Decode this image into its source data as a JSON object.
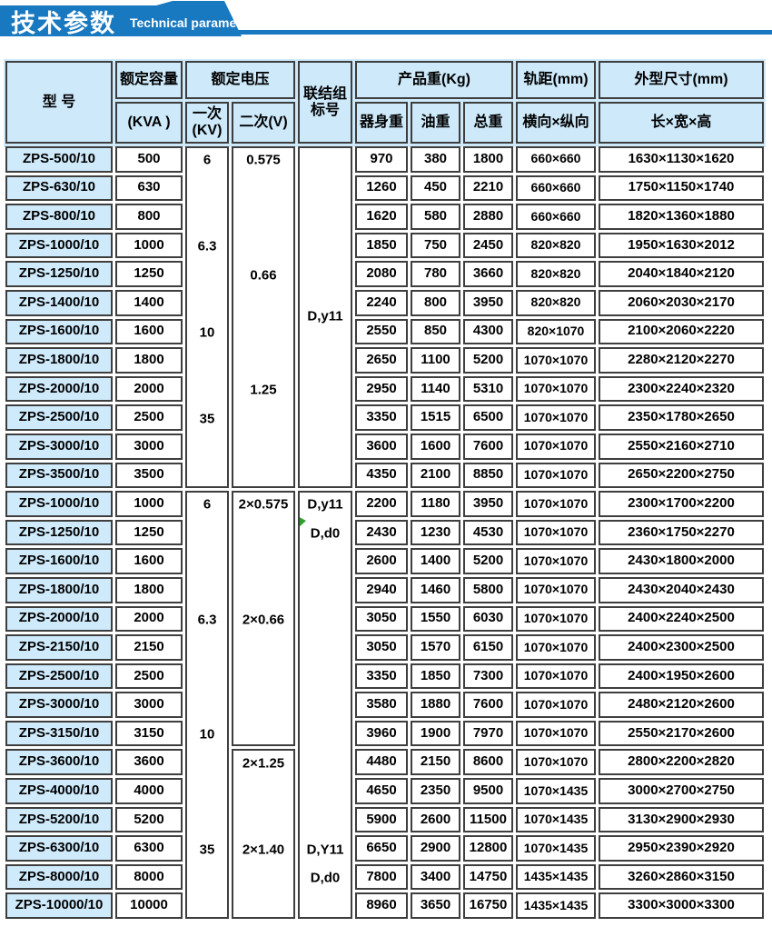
{
  "banner": {
    "title_zh": "技术参数",
    "title_en": "Technical parameter",
    "color": "#1879c0"
  },
  "table": {
    "colors": {
      "border": "#3e3e3e",
      "header_bg": "#cde9fa",
      "model_bg": "#cfeafb",
      "marker_green": "#2da02d"
    },
    "headers": {
      "model": "型 号",
      "capacity_line1": "额定容量",
      "capacity_line2": "(KVA )",
      "voltage": "额定电压",
      "primary_line1": "一次",
      "primary_line2": "(KV)",
      "secondary": "二次(V)",
      "connection_line1": "联结组",
      "connection_line2": "标号",
      "weight": "产品重(Kg)",
      "body_weight": "器身重",
      "oil_weight": "油重",
      "total_weight": "总重",
      "gauge": "轨距(mm)",
      "gauge_sub": "横向×纵向",
      "dimensions": "外型尺寸(mm)",
      "dimensions_sub": "长×宽×高"
    },
    "sections": [
      {
        "rows": [
          {
            "model": "ZPS-500/10",
            "kva": "500",
            "body": "970",
            "oil": "380",
            "total": "1800",
            "gauge": "660×660",
            "dims": "1630×1130×1620"
          },
          {
            "model": "ZPS-630/10",
            "kva": "630",
            "body": "1260",
            "oil": "450",
            "total": "2210",
            "gauge": "660×660",
            "dims": "1750×1150×1740"
          },
          {
            "model": "ZPS-800/10",
            "kva": "800",
            "body": "1620",
            "oil": "580",
            "total": "2880",
            "gauge": "660×660",
            "dims": "1820×1360×1880"
          },
          {
            "model": "ZPS-1000/10",
            "kva": "1000",
            "body": "1850",
            "oil": "750",
            "total": "2450",
            "gauge": "820×820",
            "dims": "1950×1630×2012"
          },
          {
            "model": "ZPS-1250/10",
            "kva": "1250",
            "body": "2080",
            "oil": "780",
            "total": "3660",
            "gauge": "820×820",
            "dims": "2040×1840×2120"
          },
          {
            "model": "ZPS-1400/10",
            "kva": "1400",
            "body": "2240",
            "oil": "800",
            "total": "3950",
            "gauge": "820×820",
            "dims": "2060×2030×2170"
          },
          {
            "model": "ZPS-1600/10",
            "kva": "1600",
            "body": "2550",
            "oil": "850",
            "total": "4300",
            "gauge": "820×1070",
            "dims": "2100×2060×2220"
          },
          {
            "model": "ZPS-1800/10",
            "kva": "1800",
            "body": "2650",
            "oil": "1100",
            "total": "5200",
            "gauge": "1070×1070",
            "dims": "2280×2120×2270"
          },
          {
            "model": "ZPS-2000/10",
            "kva": "2000",
            "body": "2950",
            "oil": "1140",
            "total": "5310",
            "gauge": "1070×1070",
            "dims": "2300×2240×2320"
          },
          {
            "model": "ZPS-2500/10",
            "kva": "2500",
            "body": "3350",
            "oil": "1515",
            "total": "6500",
            "gauge": "1070×1070",
            "dims": "2350×1780×2650"
          },
          {
            "model": "ZPS-3000/10",
            "kva": "3000",
            "body": "3600",
            "oil": "1600",
            "total": "7600",
            "gauge": "1070×1070",
            "dims": "2550×2160×2710"
          },
          {
            "model": "ZPS-3500/10",
            "kva": "3500",
            "body": "4350",
            "oil": "2100",
            "total": "8850",
            "gauge": "1070×1070",
            "dims": "2650×2200×2750"
          }
        ],
        "primary": {
          "cells": [
            {
              "from": 0,
              "to": 11,
              "values": [
                {
                  "row": 0,
                  "text": "6"
                },
                {
                  "row": 3,
                  "text": "6.3"
                },
                {
                  "row": 6,
                  "text": "10"
                },
                {
                  "row": 9,
                  "text": "35"
                }
              ]
            }
          ]
        },
        "secondary": {
          "cells": [
            {
              "from": 0,
              "to": 11,
              "values": [
                {
                  "row": 0,
                  "text": "0.575"
                },
                {
                  "row": 4,
                  "text": "0.66"
                },
                {
                  "row": 8,
                  "text": "1.25"
                }
              ]
            }
          ]
        },
        "connection": {
          "cells": [
            {
              "from": 0,
              "to": 11,
              "values": [
                {
                  "row": "center",
                  "text": "D,y11"
                }
              ]
            }
          ]
        }
      },
      {
        "rows": [
          {
            "model": "ZPS-1000/10",
            "kva": "1000",
            "body": "2200",
            "oil": "1180",
            "total": "3950",
            "gauge": "1070×1070",
            "dims": "2300×1700×2200"
          },
          {
            "model": "ZPS-1250/10",
            "kva": "1250",
            "body": "2430",
            "oil": "1230",
            "total": "4530",
            "gauge": "1070×1070",
            "dims": "2360×1750×2270"
          },
          {
            "model": "ZPS-1600/10",
            "kva": "1600",
            "body": "2600",
            "oil": "1400",
            "total": "5200",
            "gauge": "1070×1070",
            "dims": "2430×1800×2000"
          },
          {
            "model": "ZPS-1800/10",
            "kva": "1800",
            "body": "2940",
            "oil": "1460",
            "total": "5800",
            "gauge": "1070×1070",
            "dims": "2430×2040×2430"
          },
          {
            "model": "ZPS-2000/10",
            "kva": "2000",
            "body": "3050",
            "oil": "1550",
            "total": "6030",
            "gauge": "1070×1070",
            "dims": "2400×2240×2500"
          },
          {
            "model": "ZPS-2150/10",
            "kva": "2150",
            "body": "3050",
            "oil": "1570",
            "total": "6150",
            "gauge": "1070×1070",
            "dims": "2400×2300×2500"
          },
          {
            "model": "ZPS-2500/10",
            "kva": "2500",
            "body": "3350",
            "oil": "1850",
            "total": "7300",
            "gauge": "1070×1070",
            "dims": "2400×1950×2600"
          },
          {
            "model": "ZPS-3000/10",
            "kva": "3000",
            "body": "3580",
            "oil": "1880",
            "total": "7600",
            "gauge": "1070×1070",
            "dims": "2480×2120×2600"
          },
          {
            "model": "ZPS-3150/10",
            "kva": "3150",
            "body": "3960",
            "oil": "1900",
            "total": "7970",
            "gauge": "1070×1070",
            "dims": "2550×2170×2600"
          },
          {
            "model": "ZPS-3600/10",
            "kva": "3600",
            "body": "4480",
            "oil": "2150",
            "total": "8600",
            "gauge": "1070×1070",
            "dims": "2800×2200×2820"
          },
          {
            "model": "ZPS-4000/10",
            "kva": "4000",
            "body": "4650",
            "oil": "2350",
            "total": "9500",
            "gauge": "1070×1435",
            "dims": "3000×2700×2750"
          },
          {
            "model": "ZPS-5200/10",
            "kva": "5200",
            "body": "5900",
            "oil": "2600",
            "total": "11500",
            "gauge": "1070×1435",
            "dims": "3130×2900×2930"
          },
          {
            "model": "ZPS-6300/10",
            "kva": "6300",
            "body": "6650",
            "oil": "2900",
            "total": "12800",
            "gauge": "1070×1435",
            "dims": "2950×2390×2920"
          },
          {
            "model": "ZPS-8000/10",
            "kva": "8000",
            "body": "7800",
            "oil": "3400",
            "total": "14750",
            "gauge": "1435×1435",
            "dims": "3260×2860×3150"
          },
          {
            "model": "ZPS-10000/10",
            "kva": "10000",
            "body": "8960",
            "oil": "3650",
            "total": "16750",
            "gauge": "1435×1435",
            "dims": "3300×3000×3300"
          }
        ],
        "primary": {
          "cells": [
            {
              "from": 0,
              "to": 14,
              "values": [
                {
                  "row": 0,
                  "text": "6"
                },
                {
                  "row": 4,
                  "text": "6.3"
                },
                {
                  "row": 8,
                  "text": "10"
                },
                {
                  "row": 12,
                  "text": "35"
                }
              ]
            }
          ]
        },
        "secondary": {
          "cells": [
            {
              "from": 0,
              "to": 8,
              "values": [
                {
                  "row": 0,
                  "text": "2×0.575"
                },
                {
                  "row": 4,
                  "text": "2×0.66"
                }
              ]
            },
            {
              "from": 9,
              "to": 14,
              "values": [
                {
                  "row": 9,
                  "text": "2×1.25"
                },
                {
                  "row": 12,
                  "text": "2×1.40"
                }
              ]
            }
          ]
        },
        "connection": {
          "cells": [
            {
              "from": 0,
              "to": 14,
              "values": [
                {
                  "row": 0,
                  "text": "D,y11"
                },
                {
                  "row": 1,
                  "text": "D,d0"
                },
                {
                  "row": 12,
                  "text": "D,Y11"
                },
                {
                  "row": 13,
                  "text": "D,d0"
                }
              ],
              "marker": {
                "row": 1
              }
            }
          ]
        }
      }
    ]
  }
}
